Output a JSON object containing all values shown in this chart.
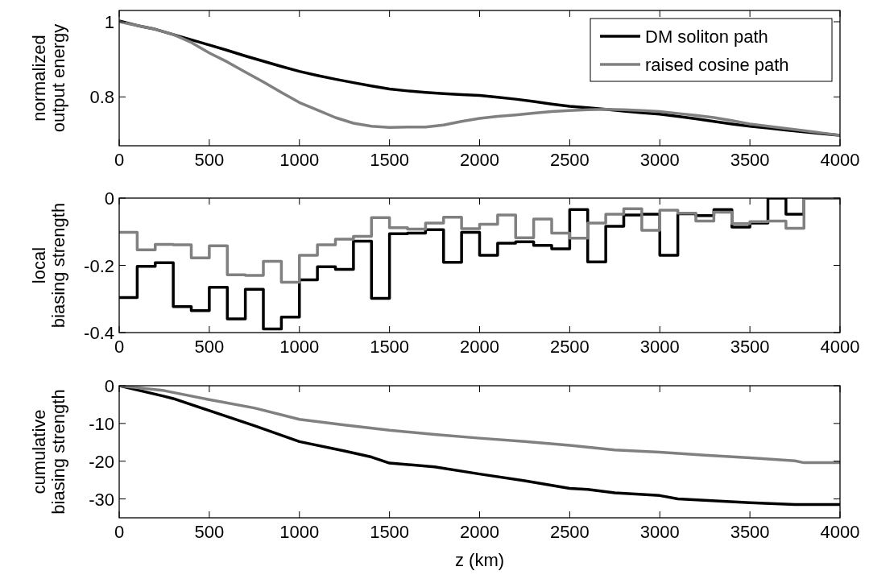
{
  "chart_data": [
    {
      "type": "line",
      "ylabel": "normalized\noutput energy",
      "x": [
        0,
        100,
        200,
        300,
        400,
        500,
        600,
        700,
        800,
        900,
        1000,
        1100,
        1200,
        1300,
        1400,
        1500,
        1600,
        1700,
        1800,
        1900,
        2000,
        2100,
        2200,
        2300,
        2400,
        2500,
        2600,
        2700,
        2800,
        2900,
        3000,
        3100,
        3200,
        3300,
        3400,
        3500,
        3600,
        3700,
        3800,
        3900,
        4000
      ],
      "xlim": [
        0,
        4000
      ],
      "xticks": [
        0,
        500,
        1000,
        1500,
        2000,
        2500,
        3000,
        3500,
        4000
      ],
      "ylim": [
        0.67,
        1.03
      ],
      "yticks": [
        0.8,
        1
      ],
      "legend": "top right",
      "series": [
        {
          "name": "DM soliton path",
          "color": "#000000",
          "values": [
            1.002,
            0.99,
            0.98,
            0.966,
            0.952,
            0.938,
            0.924,
            0.909,
            0.895,
            0.881,
            0.868,
            0.857,
            0.847,
            0.838,
            0.829,
            0.821,
            0.816,
            0.812,
            0.809,
            0.806,
            0.804,
            0.799,
            0.794,
            0.788,
            0.781,
            0.775,
            0.771,
            0.767,
            0.762,
            0.758,
            0.754,
            0.748,
            0.742,
            0.735,
            0.728,
            0.722,
            0.717,
            0.712,
            0.707,
            0.702,
            0.698
          ]
        },
        {
          "name": "raised cosine path",
          "color": "#808080",
          "values": [
            1.0,
            0.99,
            0.98,
            0.966,
            0.945,
            0.917,
            0.893,
            0.866,
            0.84,
            0.812,
            0.785,
            0.765,
            0.745,
            0.73,
            0.722,
            0.719,
            0.72,
            0.72,
            0.725,
            0.735,
            0.743,
            0.748,
            0.752,
            0.757,
            0.761,
            0.764,
            0.766,
            0.767,
            0.766,
            0.764,
            0.761,
            0.756,
            0.751,
            0.745,
            0.737,
            0.728,
            0.722,
            0.716,
            0.71,
            0.704,
            0.698
          ]
        }
      ]
    },
    {
      "type": "step",
      "ylabel": "local\nbiasing strength",
      "x": [
        0,
        100,
        200,
        300,
        400,
        500,
        600,
        700,
        800,
        900,
        1000,
        1100,
        1200,
        1300,
        1400,
        1500,
        1600,
        1700,
        1800,
        1900,
        2000,
        2100,
        2200,
        2300,
        2400,
        2500,
        2600,
        2700,
        2800,
        2900,
        3000,
        3100,
        3200,
        3300,
        3400,
        3500,
        3600,
        3700,
        3800,
        3900,
        4000
      ],
      "xlim": [
        0,
        4000
      ],
      "xticks": [
        0,
        500,
        1000,
        1500,
        2000,
        2500,
        3000,
        3500,
        4000
      ],
      "ylim": [
        -0.4,
        0
      ],
      "yticks": [
        -0.4,
        -0.2,
        0
      ],
      "series": [
        {
          "color": "#000000",
          "values": [
            -0.296,
            -0.203,
            -0.192,
            -0.323,
            -0.335,
            -0.265,
            -0.359,
            -0.271,
            -0.389,
            -0.354,
            -0.243,
            -0.204,
            -0.212,
            -0.128,
            -0.298,
            -0.106,
            -0.104,
            -0.094,
            -0.191,
            -0.102,
            -0.17,
            -0.134,
            -0.13,
            -0.141,
            -0.151,
            -0.034,
            -0.19,
            -0.084,
            -0.05,
            -0.048,
            -0.17,
            -0.047,
            -0.052,
            -0.034,
            -0.086,
            -0.074,
            0,
            -0.048,
            0,
            0,
            0
          ]
        },
        {
          "color": "#808080",
          "values": [
            -0.102,
            -0.154,
            -0.138,
            -0.139,
            -0.178,
            -0.142,
            -0.228,
            -0.23,
            -0.188,
            -0.25,
            -0.17,
            -0.139,
            -0.122,
            -0.114,
            -0.058,
            -0.088,
            -0.092,
            -0.074,
            -0.057,
            -0.091,
            -0.078,
            -0.05,
            -0.118,
            -0.062,
            -0.104,
            -0.119,
            -0.074,
            -0.048,
            -0.032,
            -0.096,
            -0.036,
            -0.045,
            -0.068,
            -0.042,
            -0.076,
            -0.07,
            -0.068,
            -0.09,
            0,
            0,
            0
          ]
        }
      ]
    },
    {
      "type": "line",
      "xlabel": "z (km)",
      "ylabel": "cumulative\nbiasing strength",
      "xlim": [
        0,
        4000
      ],
      "xticks": [
        0,
        500,
        1000,
        1500,
        2000,
        2500,
        3000,
        3500,
        4000
      ],
      "ylim": [
        -35,
        0
      ],
      "yticks": [
        -30,
        -20,
        -10,
        0
      ],
      "series": [
        {
          "color": "#000000",
          "x": [
            0,
            250,
            300,
            500,
            750,
            1000,
            1250,
            1400,
            1500,
            1750,
            2000,
            2250,
            2500,
            2600,
            2750,
            3000,
            3100,
            3500,
            3750,
            4000
          ],
          "values": [
            0,
            -2.8,
            -3.4,
            -6.6,
            -10.6,
            -14.8,
            -17.3,
            -18.9,
            -20.5,
            -21.5,
            -23.4,
            -25.2,
            -27.2,
            -27.5,
            -28.4,
            -29.1,
            -30,
            -31,
            -31.5,
            -31.5
          ]
        },
        {
          "color": "#808080",
          "x": [
            0,
            250,
            500,
            750,
            1000,
            1250,
            1500,
            1750,
            2000,
            2250,
            2500,
            2750,
            3000,
            3250,
            3500,
            3750,
            3800,
            4000
          ],
          "values": [
            0,
            -1.3,
            -3.7,
            -5.9,
            -8.9,
            -10.4,
            -11.8,
            -12.9,
            -13.9,
            -14.8,
            -15.8,
            -17,
            -17.6,
            -18.4,
            -19.1,
            -19.9,
            -20.4,
            -20.4
          ]
        }
      ]
    }
  ]
}
